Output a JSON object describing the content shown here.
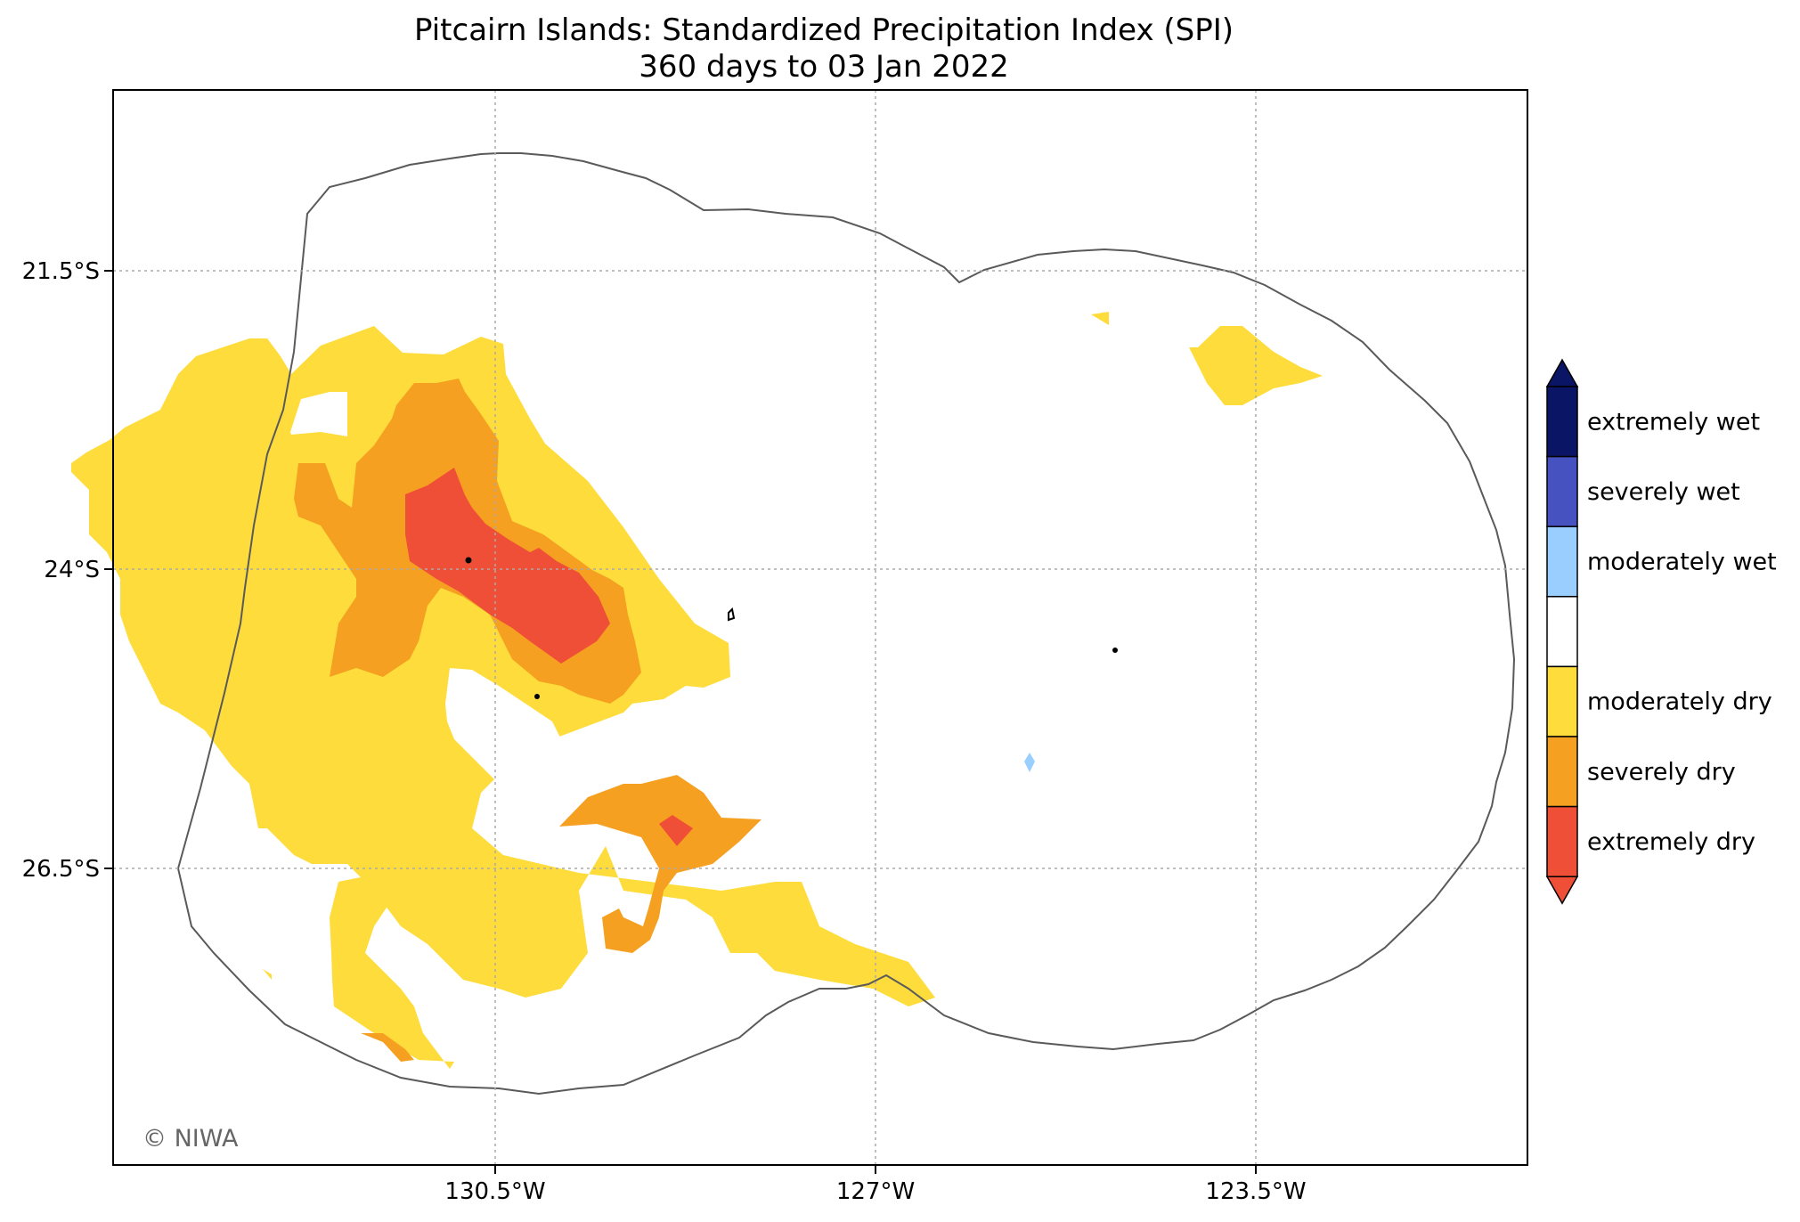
{
  "title": {
    "line1": "Pitcairn Islands: Standardized Precipitation Index (SPI)",
    "line2": "360 days to 03 Jan 2022"
  },
  "axes": {
    "lat_ticks": [
      "21.5°S",
      "24°S",
      "26.5°S"
    ],
    "lon_ticks": [
      "130.5°W",
      "127°W",
      "123.5°W"
    ]
  },
  "credit": "© NIWA",
  "legend": {
    "categories": [
      {
        "label": "extremely wet",
        "color": "#0b1566"
      },
      {
        "label": "severely wet",
        "color": "#4552c0"
      },
      {
        "label": "moderately wet",
        "color": "#99ceff"
      },
      {
        "label": "",
        "color": "#ffffff"
      },
      {
        "label": "moderately dry",
        "color": "#fddc3b"
      },
      {
        "label": "severely dry",
        "color": "#f5a020"
      },
      {
        "label": "extremely dry",
        "color": "#f04f37"
      }
    ]
  },
  "colors": {
    "boundary": "#5a5a5a",
    "grid": "#aaaaaa",
    "frame": "#000000"
  }
}
